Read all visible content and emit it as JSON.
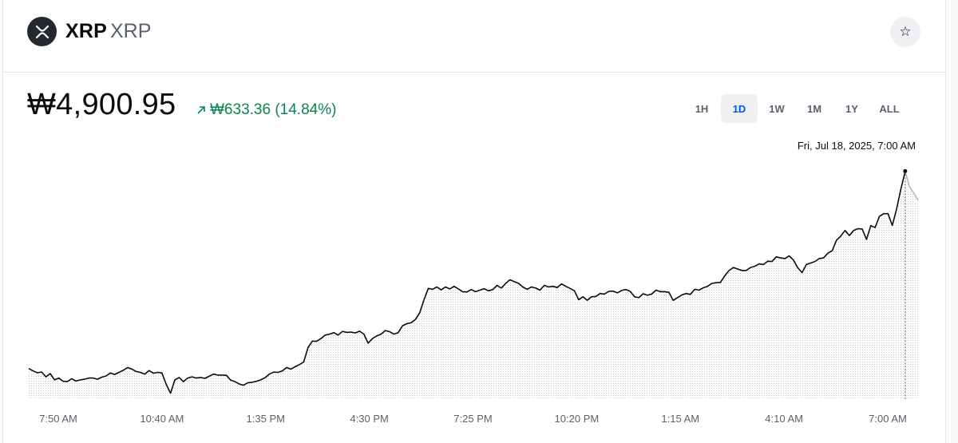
{
  "header": {
    "name": "XRP",
    "ticker": "XRP",
    "logo_icon": "xrp-logo-icon",
    "star_icon": "star-icon"
  },
  "price": {
    "current": "₩4,900.95",
    "change": "₩633.36 (14.84%)",
    "change_icon": "arrow-up-right-icon",
    "change_color": "#098551"
  },
  "ranges": [
    {
      "label": "1H",
      "active": false
    },
    {
      "label": "1D",
      "active": true
    },
    {
      "label": "1W",
      "active": false
    },
    {
      "label": "1M",
      "active": false
    },
    {
      "label": "1Y",
      "active": false
    },
    {
      "label": "ALL",
      "active": false
    }
  ],
  "hover_label": "Fri, Jul 18, 2025, 7:00 AM",
  "chart_data": {
    "type": "line",
    "ylim": [
      4280,
      4920
    ],
    "x_tick_labels": [
      "7:50 AM",
      "10:40 AM",
      "1:35 PM",
      "4:30 PM",
      "7:25 PM",
      "10:20 PM",
      "1:15 AM",
      "4:10 AM",
      "7:00 AM"
    ],
    "series": [
      {
        "values": [
          4361.6,
          4355.3,
          4350.4,
          4352.6,
          4339.5,
          4348.3,
          4331.5,
          4336.3,
          4327.5,
          4326.7,
          4334.7,
          4328.3,
          4331.5,
          4333.1,
          4336.3,
          4336.3,
          4333.1,
          4338.7,
          4341.9,
          4349.9,
          4345.9,
          4351.5,
          4357.0,
          4364.2,
          4360.2,
          4353.8,
          4351.5,
          4346.7,
          4356.3,
          4349.1,
          4351.5,
          4349.9,
          4319.5,
          4295.6,
          4331.5,
          4337.9,
          4326.7,
          4336.3,
          4339.5,
          4336.3,
          4337.9,
          4335.5,
          4341.1,
          4346.7,
          4344.3,
          4344.3,
          4343.5,
          4330.7,
          4326.7,
          4320.3,
          4317.1,
          4323.5,
          4325.1,
          4327.5,
          4331.5,
          4337.1,
          4346.7,
          4352.2,
          4351.5,
          4355.4,
          4364.2,
          4360.2,
          4366.6,
          4372.1,
          4379.3,
          4417.7,
          4435.2,
          4434.5,
          4441.6,
          4451.2,
          4453.6,
          4457.6,
          4451.2,
          4460.8,
          4458.4,
          4459.2,
          4456.8,
          4461.6,
          4453.6,
          4429.6,
          4441.6,
          4448.8,
          4453.6,
          4463.2,
          4460.0,
          4453.6,
          4457.6,
          4476.0,
          4481.6,
          4484.0,
          4492.8,
          4510.3,
          4545.5,
          4575.9,
          4573.5,
          4579.8,
          4571.8,
          4579.8,
          4574.3,
          4581.4,
          4574.3,
          4567.1,
          4566.3,
          4572.7,
          4567.1,
          4571.1,
          4575.1,
          4569.5,
          4572.7,
          4583.9,
          4576.7,
          4589.4,
          4599.0,
          4594.2,
          4589.4,
          4579.8,
          4573.5,
          4579.8,
          4576.7,
          4571.1,
          4583.9,
          4579.8,
          4581.4,
          4578.2,
          4587.8,
          4581.4,
          4575.9,
          4569.5,
          4545.5,
          4553.5,
          4543.9,
          4553.5,
          4554.3,
          4562.3,
          4560.7,
          4567.9,
          4568.7,
          4563.9,
          4570.3,
          4572.7,
          4567.9,
          4553.5,
          4551.1,
          4561.5,
          4557.5,
          4560.7,
          4571.1,
          4567.1,
          4567.1,
          4565.5,
          4543.9,
          4551.1,
          4558.3,
          4562.3,
          4559.9,
          4573.5,
          4571.1,
          4577.4,
          4581.4,
          4589.4,
          4591.0,
          4591.8,
          4609.3,
          4623.7,
          4631.7,
          4627.7,
          4623.7,
          4623.7,
          4631.7,
          4634.9,
          4641.3,
          4639.7,
          4648.5,
          4647.7,
          4660.4,
          4657.3,
          4655.7,
          4662.8,
          4651.7,
          4630.9,
          4618.1,
          4639.7,
          4643.7,
          4647.7,
          4655.7,
          4657.3,
          4670.0,
          4676.4,
          4704.4,
          4715.6,
          4730.7,
          4717.1,
          4730.7,
          4735.5,
          4734.7,
          4706.8,
          4743.5,
          4738.7,
          4768.3,
          4775.5,
          4775.5,
          4744.3,
          4788.2,
          4842.0,
          4889.3,
          4847.3,
          4831.0,
          4811.6
        ]
      }
    ]
  }
}
